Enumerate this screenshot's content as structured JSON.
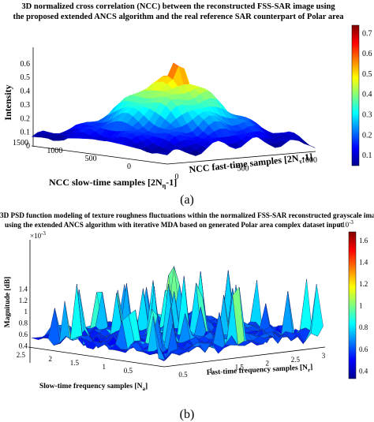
{
  "chart_data": [
    {
      "type": "surface",
      "panel_label": "(a)",
      "title_line1": "3D normalized cross correlation (NCC) between the reconstructed FSS-SAR image using",
      "title_line2": "the proposed extended ANCS algorithm and the real reference SAR counterpart of Polar area",
      "zlabel": "Intensity",
      "xlabel": "NCC fast-time samples [2N",
      "xlabel_sub": "τ",
      "xlabel_tail": "-1]",
      "ylabel": "NCC slow-time samples [2N",
      "ylabel_sub": "η",
      "ylabel_tail": "-1]",
      "zticks": [
        "0",
        "0.1",
        "0.2",
        "0.3",
        "0.4",
        "0.5",
        "0.6"
      ],
      "zlim": [
        0,
        0.72
      ],
      "slow_ticks": [
        "1500",
        "1000",
        "500",
        "0"
      ],
      "fast_ticks": [
        "0",
        "500",
        "1000"
      ],
      "colorbar_ticks": [
        "0.1",
        "0.2",
        "0.3",
        "0.4",
        "0.5",
        "0.6",
        "0.7"
      ],
      "colorbar_range": [
        0.05,
        0.74
      ],
      "peak": 0.72,
      "colormap": "jet"
    },
    {
      "type": "surface",
      "panel_label": "(b)",
      "title_line1": "3D PSD function modeling of texture roughness fluctuations within the normalized FSS-SAR reconstructed grayscale image",
      "title_line2": "using the extended ANCS algorithm with iterative MDA based on generated Polar area complex dataset input",
      "exponent_label": "×10",
      "exponent_power": "-3",
      "zlabel": "Magnitude [dB]",
      "xlabel": "Fast-time frequency samples [N",
      "xlabel_sub": "r",
      "xlabel_tail": "]",
      "ylabel": "Slow-time frequency samples [N",
      "ylabel_sub": "a",
      "ylabel_tail": "]",
      "zticks": [
        "0.4",
        "0.6",
        "0.8",
        "1",
        "1.2",
        "1.4"
      ],
      "zlim": [
        0.35,
        1.6
      ],
      "slow_ticks": [
        "2.5",
        "2",
        "1.5",
        "1",
        "0.5"
      ],
      "fast_ticks": [
        "0.5",
        "1",
        "1.5",
        "2",
        "2.5",
        "3"
      ],
      "colorbar_ticks": [
        "0.4",
        "0.6",
        "0.8",
        "1",
        "1.2",
        "1.4",
        "1.6"
      ],
      "colorbar_range": [
        0.33,
        1.68
      ],
      "colormap": "jet"
    }
  ]
}
